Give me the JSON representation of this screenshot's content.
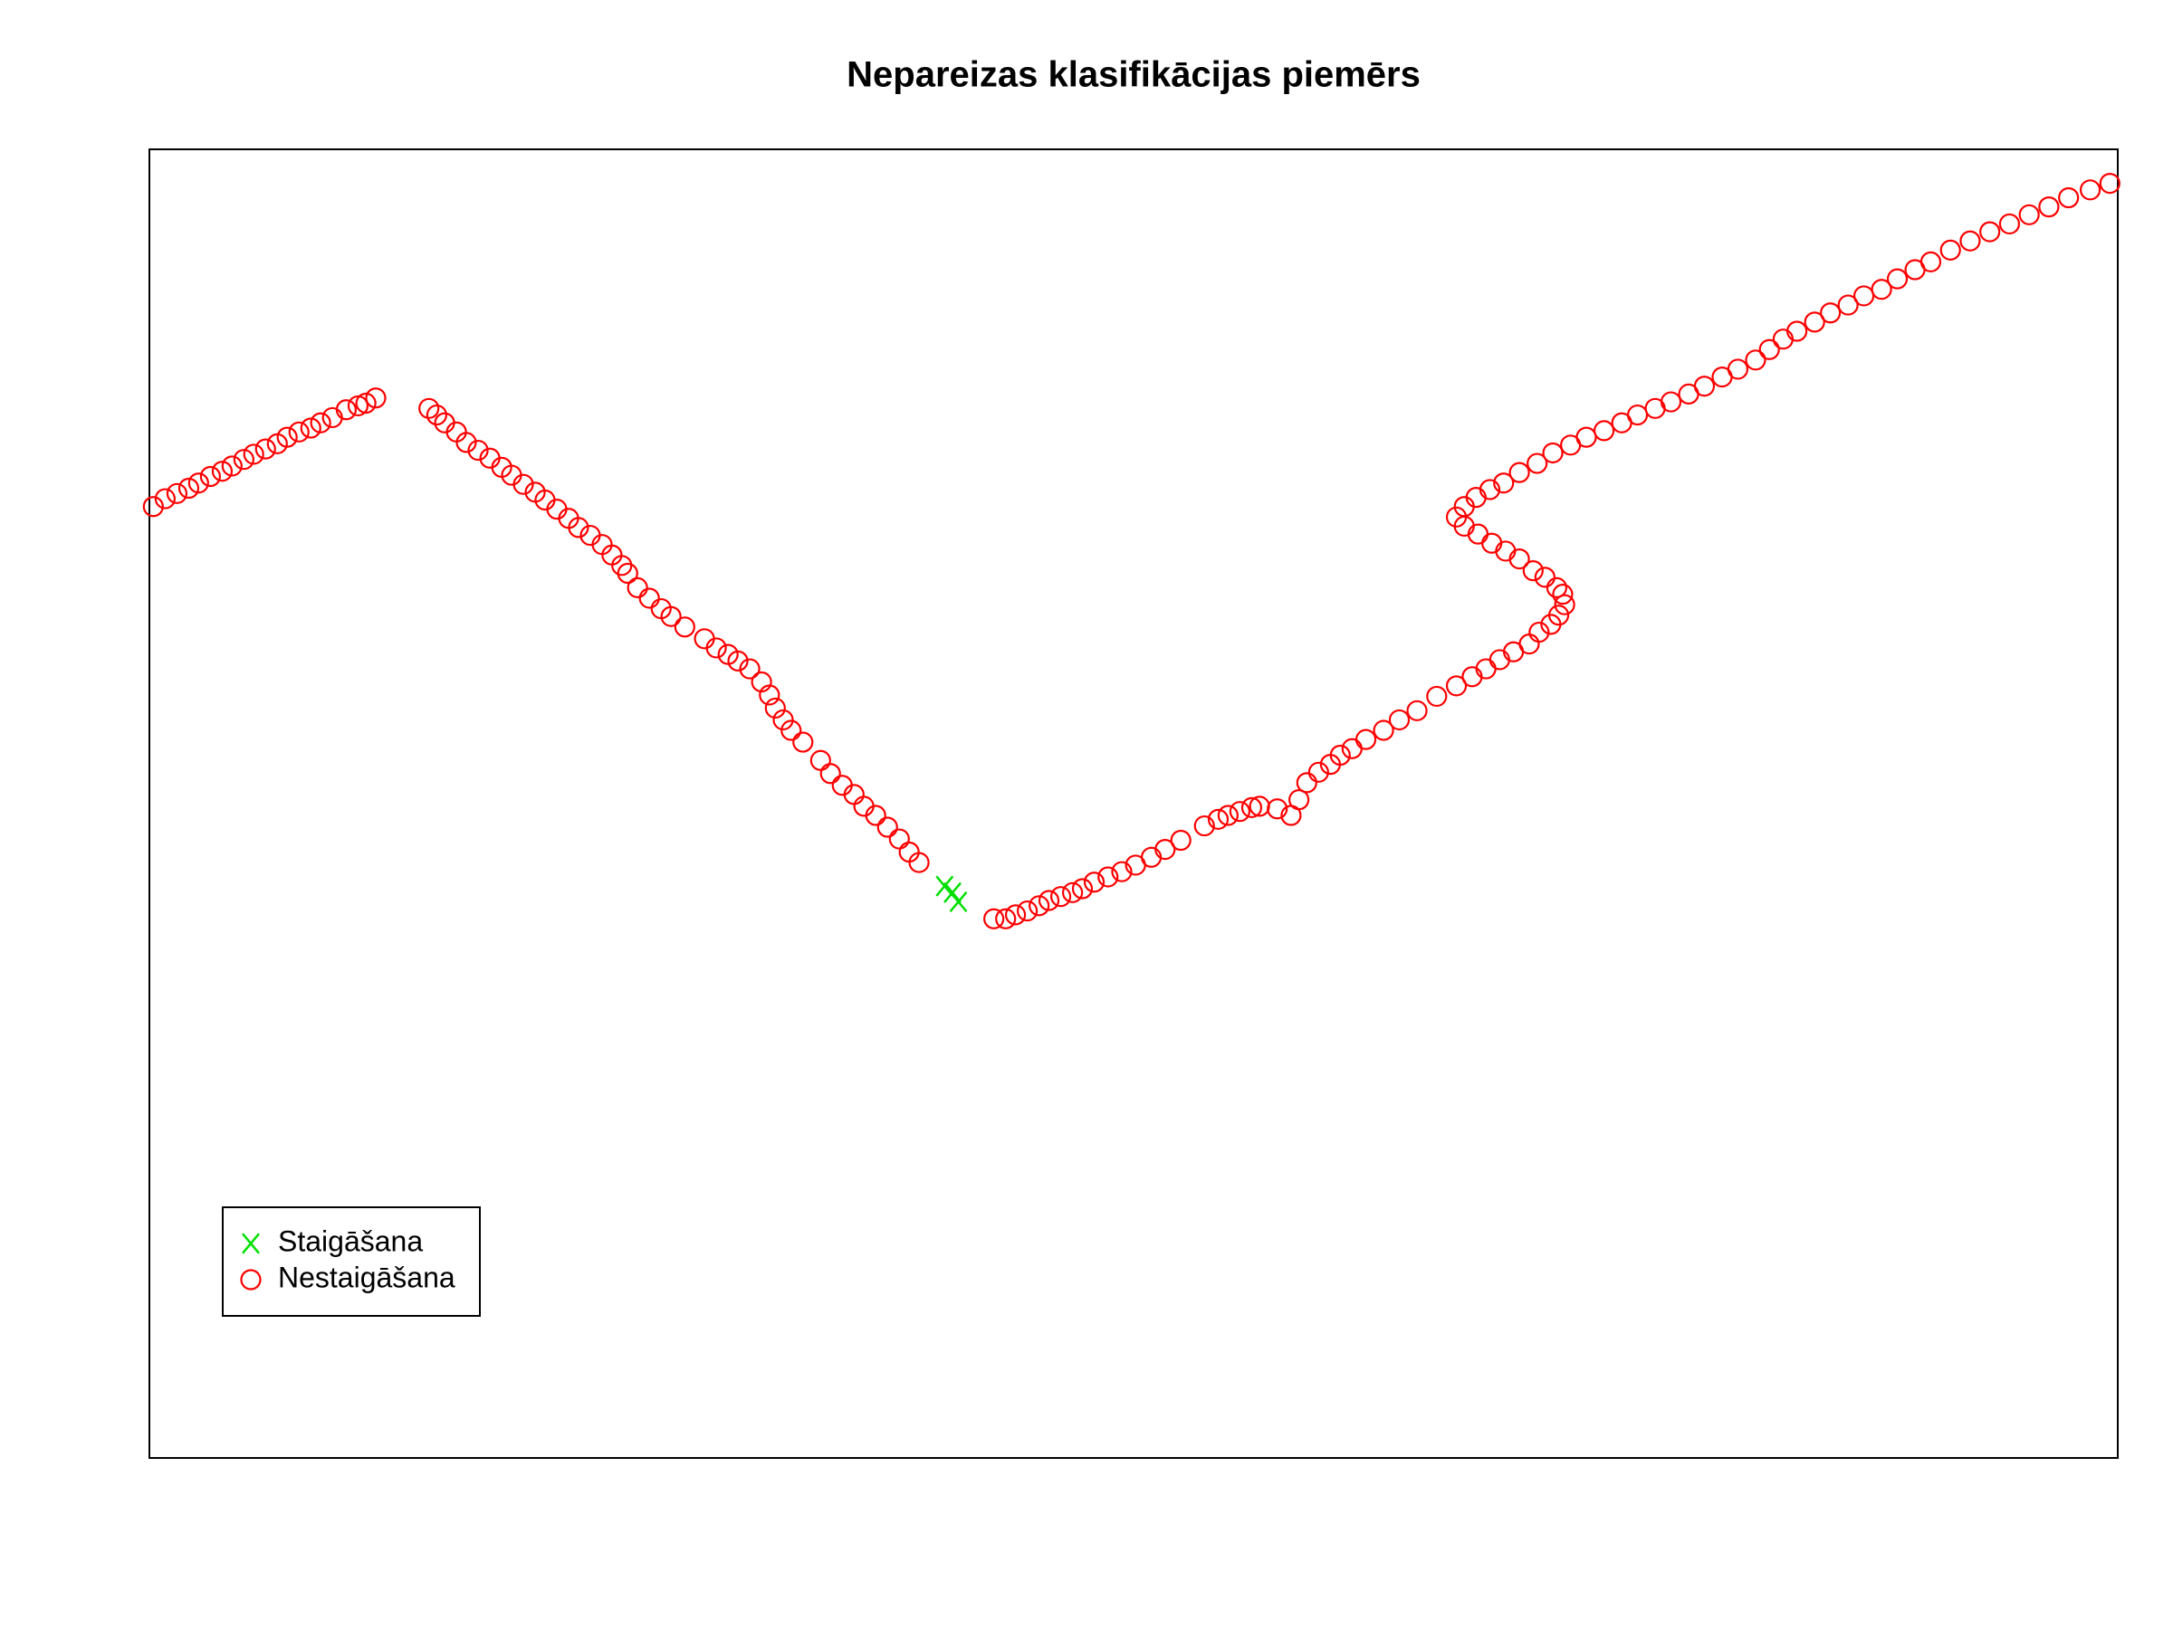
{
  "chart_data": {
    "type": "scatter",
    "title": "Nepareizas klasifikācijas piemērs",
    "xlim": [
      0,
      100
    ],
    "ylim": [
      0,
      100
    ],
    "grid": false,
    "legend": "bottom-left",
    "series": [
      {
        "name": "Staigāšana",
        "color": "#00e000",
        "marker": "x",
        "x": [
          40.4,
          40.8,
          41.1
        ],
        "values": [
          43.7,
          43.2,
          42.5
        ]
      },
      {
        "name": "Nestaigāšana",
        "color": "#ff0000",
        "marker": "circle",
        "x": [
          0.2,
          0.8,
          1.4,
          2.0,
          2.5,
          3.1,
          3.7,
          4.2,
          4.8,
          5.3,
          5.9,
          6.5,
          7.0,
          7.6,
          8.2,
          8.7,
          9.3,
          10.0,
          10.6,
          11.0,
          11.5,
          14.2,
          14.6,
          15.0,
          15.6,
          16.1,
          16.7,
          17.3,
          17.9,
          18.4,
          19.0,
          19.6,
          20.1,
          20.7,
          21.3,
          21.8,
          22.4,
          23.0,
          23.5,
          24.0,
          24.3,
          24.8,
          25.4,
          26.0,
          26.5,
          27.2,
          28.2,
          28.8,
          29.4,
          29.9,
          30.5,
          31.1,
          31.5,
          31.8,
          32.2,
          32.6,
          33.2,
          34.1,
          34.6,
          35.2,
          35.8,
          36.3,
          36.9,
          37.5,
          38.1,
          38.6,
          39.1,
          42.9,
          43.5,
          44.0,
          44.6,
          45.2,
          45.7,
          46.3,
          46.9,
          47.4,
          48.0,
          48.7,
          49.4,
          50.1,
          50.9,
          51.6,
          52.4,
          53.6,
          54.3,
          54.8,
          55.4,
          56.0,
          56.4,
          57.3,
          58.0,
          58.4,
          58.8,
          59.4,
          60.0,
          60.5,
          61.1,
          61.8,
          62.7,
          63.5,
          64.4,
          65.4,
          66.4,
          67.2,
          67.9,
          68.6,
          69.3,
          70.1,
          70.6,
          71.2,
          71.6,
          71.9,
          71.8,
          71.5,
          70.9,
          70.3,
          69.6,
          68.9,
          68.2,
          67.5,
          66.8,
          66.4,
          66.8,
          67.4,
          68.1,
          68.8,
          69.6,
          70.5,
          71.3,
          72.2,
          73.0,
          73.9,
          74.8,
          75.6,
          76.5,
          77.3,
          78.2,
          79.0,
          79.9,
          80.7,
          81.6,
          82.3,
          83.0,
          83.7,
          84.6,
          85.4,
          86.3,
          87.1,
          88.0,
          88.8,
          89.7,
          90.5,
          91.5,
          92.5,
          93.5,
          94.5,
          95.5,
          96.5,
          97.5,
          98.6,
          99.6
        ],
        "values": [
          72.7,
          73.3,
          73.7,
          74.1,
          74.5,
          75.0,
          75.4,
          75.8,
          76.3,
          76.7,
          77.1,
          77.5,
          78.0,
          78.4,
          78.7,
          79.1,
          79.5,
          80.1,
          80.4,
          80.6,
          81.0,
          80.2,
          79.7,
          79.1,
          78.4,
          77.6,
          77.0,
          76.4,
          75.7,
          75.1,
          74.4,
          73.8,
          73.2,
          72.5,
          71.8,
          71.1,
          70.5,
          69.8,
          69.0,
          68.2,
          67.6,
          66.5,
          65.7,
          64.9,
          64.3,
          63.5,
          62.6,
          61.9,
          61.4,
          60.9,
          60.3,
          59.3,
          58.3,
          57.3,
          56.4,
          55.6,
          54.7,
          53.3,
          52.3,
          51.4,
          50.7,
          49.8,
          49.1,
          48.2,
          47.3,
          46.3,
          45.5,
          41.2,
          41.2,
          41.5,
          41.8,
          42.2,
          42.6,
          42.9,
          43.2,
          43.5,
          44.0,
          44.4,
          44.8,
          45.3,
          45.9,
          46.5,
          47.2,
          48.3,
          48.8,
          49.1,
          49.4,
          49.7,
          49.8,
          49.6,
          49.1,
          50.3,
          51.6,
          52.4,
          53.0,
          53.7,
          54.2,
          54.9,
          55.6,
          56.4,
          57.1,
          58.2,
          59.0,
          59.7,
          60.3,
          61.0,
          61.6,
          62.2,
          63.1,
          63.7,
          64.4,
          65.2,
          66.0,
          66.5,
          67.3,
          67.8,
          68.7,
          69.3,
          69.9,
          70.6,
          71.2,
          71.9,
          72.7,
          73.4,
          74.0,
          74.5,
          75.3,
          76.0,
          76.8,
          77.4,
          78.0,
          78.5,
          79.1,
          79.7,
          80.2,
          80.7,
          81.3,
          81.9,
          82.6,
          83.2,
          83.9,
          84.7,
          85.5,
          86.1,
          86.8,
          87.5,
          88.1,
          88.8,
          89.3,
          90.1,
          90.8,
          91.4,
          92.3,
          93.0,
          93.7,
          94.3,
          95.0,
          95.6,
          96.3,
          96.9,
          97.4
        ]
      }
    ]
  }
}
